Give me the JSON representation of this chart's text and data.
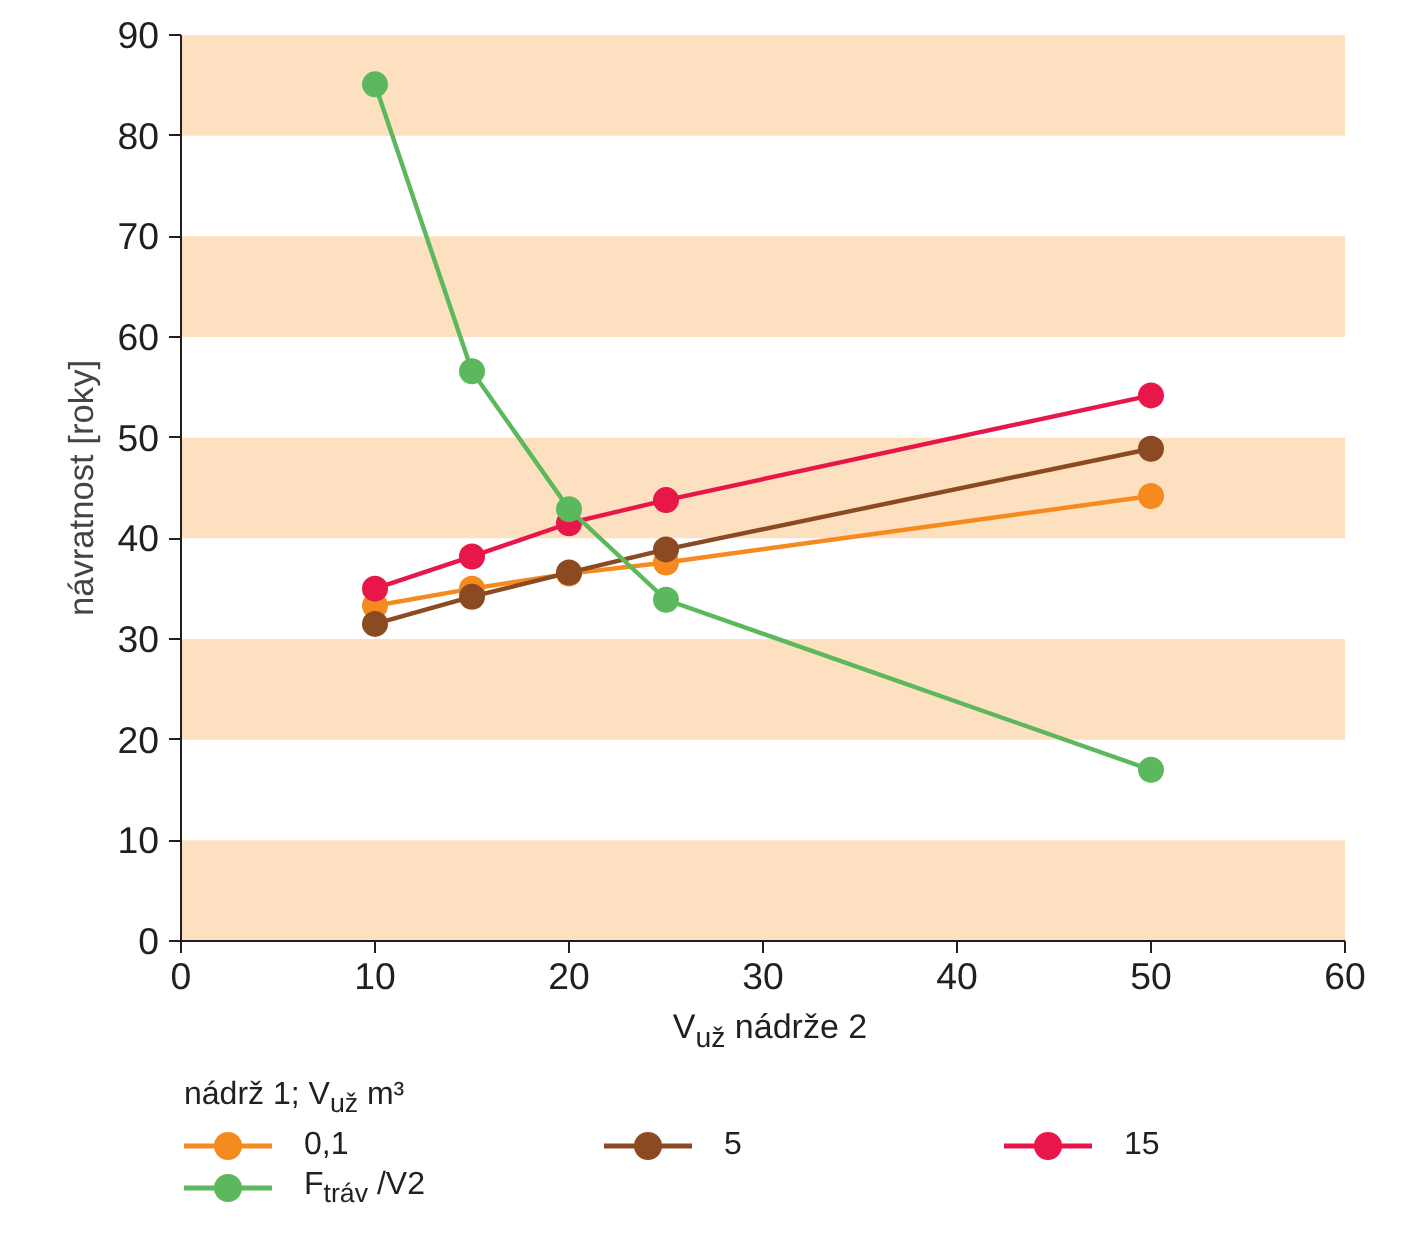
{
  "chart_data": {
    "type": "line",
    "xlabel": "V$_{už}$ nádrže 2",
    "ylabel": "návratnost [roky]",
    "legend_title": "nádrž 1;   V$_{už}$ m³",
    "x": [
      10,
      15,
      20,
      25,
      50
    ],
    "xlim": [
      0,
      60
    ],
    "xticks": [
      0,
      10,
      20,
      30,
      40,
      50,
      60
    ],
    "ylim": [
      0,
      90
    ],
    "yticks": [
      0,
      10,
      20,
      30,
      40,
      50,
      60,
      70,
      80,
      90
    ],
    "grid": false,
    "legend": "bottom",
    "marker": "circle",
    "line_style": "solid",
    "bands": [
      {
        "axis": "y",
        "from": 0,
        "to": 10,
        "color": "#fde0c0"
      },
      {
        "axis": "y",
        "from": 20,
        "to": 30,
        "color": "#fde0c0"
      },
      {
        "axis": "y",
        "from": 40,
        "to": 50,
        "color": "#fde0c0"
      },
      {
        "axis": "y",
        "from": 60,
        "to": 70,
        "color": "#fde0c0"
      },
      {
        "axis": "y",
        "from": 80,
        "to": 90,
        "color": "#fde0c0"
      }
    ],
    "series": [
      {
        "name": "0,1",
        "color": "#f58a1f",
        "values": [
          33.3,
          35.0,
          36.5,
          37.6,
          44.2
        ]
      },
      {
        "name": "5",
        "color": "#8b4a22",
        "values": [
          31.5,
          34.2,
          36.6,
          38.9,
          48.9
        ]
      },
      {
        "name": "15",
        "color": "#e8174a",
        "values": [
          35.0,
          38.2,
          41.5,
          43.8,
          54.2
        ]
      },
      {
        "name": "F$_{tráv}$ /V2",
        "color": "#5cb85c",
        "values": [
          85.1,
          56.6,
          42.9,
          33.9,
          17.0
        ]
      }
    ]
  }
}
